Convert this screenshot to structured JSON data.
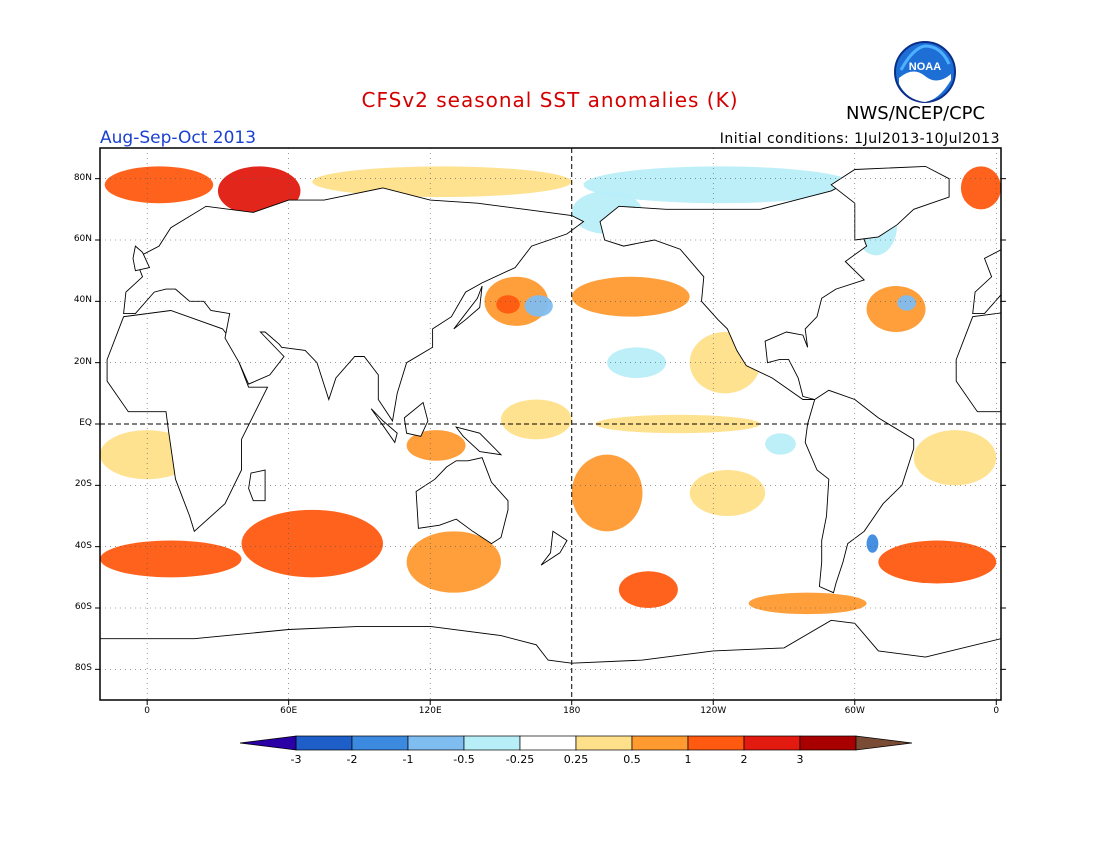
{
  "header": {
    "title": "CFSv2 seasonal SST anomalies (K)",
    "season": "Aug-Sep-Oct 2013",
    "initial_conditions": "Initial conditions: 1Jul2013-10Jul2013",
    "agency": "NWS/NCEP/CPC",
    "logo_text": "NOAA",
    "logo_icon": "noaa-logo-icon"
  },
  "axes": {
    "lat_labels": [
      "80N",
      "60N",
      "40N",
      "20N",
      "EQ",
      "20S",
      "40S",
      "60S",
      "80S"
    ],
    "lat_values": [
      80,
      60,
      40,
      20,
      0,
      -20,
      -40,
      -60,
      -80
    ],
    "lon_labels": [
      "0",
      "60E",
      "120E",
      "180",
      "120W",
      "60W",
      "0"
    ],
    "lon_values": [
      0,
      60,
      120,
      180,
      240,
      300,
      360
    ],
    "lon_range": [
      -20,
      362
    ],
    "lat_range": [
      -90,
      90
    ],
    "grid": "dotted"
  },
  "colorbar": {
    "labels": [
      "-3",
      "-2",
      "-1",
      "-0.5",
      "-0.25",
      "0.25",
      "0.5",
      "1",
      "2",
      "3"
    ],
    "colors": [
      "#2a00a6",
      "#1d5ec8",
      "#3c8ae0",
      "#7fbcf0",
      "#b8eef8",
      "#ffffff",
      "#ffe08a",
      "#ff9a30",
      "#ff5a10",
      "#e21a10",
      "#a80000",
      "#7a4b35"
    ]
  },
  "chart_data": {
    "type": "heatmap",
    "title": "CFSv2 seasonal SST anomalies (K)",
    "subtitle": "Aug-Sep-Oct 2013",
    "units": "K",
    "xlim": [
      -20,
      362
    ],
    "ylim": [
      -90,
      90
    ],
    "x_tick_labels": [
      "0",
      "60E",
      "120E",
      "180",
      "120W",
      "60W",
      "0"
    ],
    "y_tick_labels": [
      "80N",
      "60N",
      "40N",
      "20N",
      "EQ",
      "20S",
      "40S",
      "60S",
      "80S"
    ],
    "color_levels": [
      -3,
      -2,
      -1,
      -0.5,
      -0.25,
      0.25,
      0.5,
      1,
      2,
      3
    ],
    "regions": [
      {
        "lon": [
          30,
          65
        ],
        "lat": [
          68,
          84
        ],
        "value": 2.0
      },
      {
        "lon": [
          -18,
          28
        ],
        "lat": [
          72,
          84
        ],
        "value": 1.2
      },
      {
        "lon": [
          345,
          362
        ],
        "lat": [
          70,
          84
        ],
        "value": 1.2
      },
      {
        "lon": [
          70,
          180
        ],
        "lat": [
          74,
          84
        ],
        "value": 0.3
      },
      {
        "lon": [
          185,
          300
        ],
        "lat": [
          72,
          84
        ],
        "value": -0.3
      },
      {
        "lon": [
          180,
          210
        ],
        "lat": [
          62,
          76
        ],
        "value": -0.4
      },
      {
        "lon": [
          300,
          318
        ],
        "lat": [
          55,
          75
        ],
        "value": -0.4
      },
      {
        "lon": [
          143,
          170
        ],
        "lat": [
          32,
          48
        ],
        "value": 0.7
      },
      {
        "lon": [
          148,
          158
        ],
        "lat": [
          36,
          42
        ],
        "value": 1.5
      },
      {
        "lon": [
          160,
          172
        ],
        "lat": [
          35,
          42
        ],
        "value": -0.6
      },
      {
        "lon": [
          180,
          230
        ],
        "lat": [
          35,
          48
        ],
        "value": 0.8
      },
      {
        "lon": [
          195,
          220
        ],
        "lat": [
          15,
          25
        ],
        "value": -0.3
      },
      {
        "lon": [
          305,
          330
        ],
        "lat": [
          30,
          45
        ],
        "value": 0.6
      },
      {
        "lon": [
          318,
          326
        ],
        "lat": [
          37,
          42
        ],
        "value": -0.7
      },
      {
        "lon": [
          230,
          260
        ],
        "lat": [
          10,
          30
        ],
        "value": 0.4
      },
      {
        "lon": [
          190,
          260
        ],
        "lat": [
          -3,
          3
        ],
        "value": 0.3
      },
      {
        "lon": [
          110,
          135
        ],
        "lat": [
          -12,
          -2
        ],
        "value": 0.9
      },
      {
        "lon": [
          150,
          180
        ],
        "lat": [
          -5,
          8
        ],
        "value": 0.4
      },
      {
        "lon": [
          180,
          210
        ],
        "lat": [
          -35,
          -10
        ],
        "value": 0.9
      },
      {
        "lon": [
          -20,
          20
        ],
        "lat": [
          -18,
          -2
        ],
        "value": 0.35
      },
      {
        "lon": [
          325,
          360
        ],
        "lat": [
          -20,
          -2
        ],
        "value": 0.35
      },
      {
        "lon": [
          40,
          100
        ],
        "lat": [
          -50,
          -28
        ],
        "value": 1.0
      },
      {
        "lon": [
          -20,
          40
        ],
        "lat": [
          -50,
          -38
        ],
        "value": 1.2
      },
      {
        "lon": [
          110,
          150
        ],
        "lat": [
          -55,
          -35
        ],
        "value": 0.9
      },
      {
        "lon": [
          200,
          225
        ],
        "lat": [
          -60,
          -48
        ],
        "value": 1.2
      },
      {
        "lon": [
          255,
          305
        ],
        "lat": [
          -62,
          -55
        ],
        "value": 0.8
      },
      {
        "lon": [
          310,
          360
        ],
        "lat": [
          -52,
          -38
        ],
        "value": 1.3
      },
      {
        "lon": [
          305,
          310
        ],
        "lat": [
          -42,
          -36
        ],
        "value": -1.5
      },
      {
        "lon": [
          262,
          275
        ],
        "lat": [
          -10,
          -3
        ],
        "value": -0.3
      },
      {
        "lon": [
          230,
          262
        ],
        "lat": [
          -30,
          -15
        ],
        "value": 0.35
      }
    ]
  }
}
